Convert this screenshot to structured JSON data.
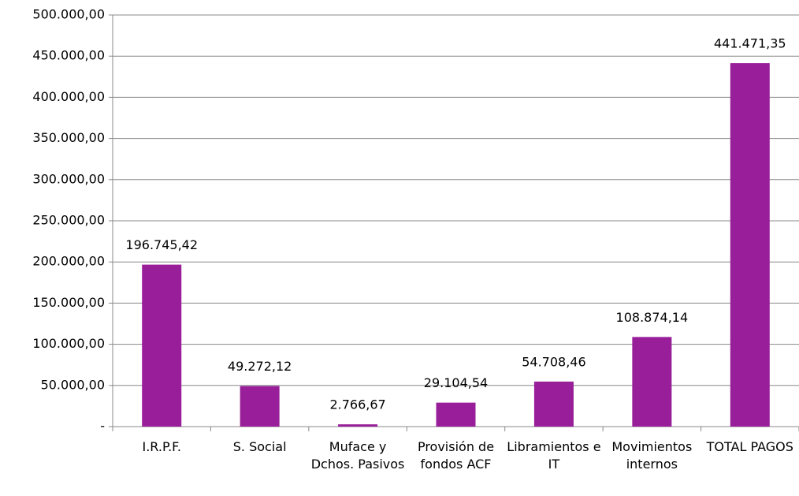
{
  "chart_data": {
    "type": "bar",
    "categories": [
      "I.R.P.F.",
      "S. Social",
      "Muface y Dchos. Pasivos",
      "Provisión de fondos ACF",
      "Libramientos e IT",
      "Movimientos internos",
      "TOTAL PAGOS"
    ],
    "values": [
      196745.42,
      49272.12,
      2766.67,
      29104.54,
      54708.46,
      108874.14,
      441471.35
    ],
    "value_labels": [
      "196.745,42",
      "49.272,12",
      "2.766,67",
      "29.104,54",
      "54.708,46",
      "108.874,14",
      "441.471,35"
    ],
    "color": "#991e99",
    "ylim": [
      0,
      500000
    ],
    "yticks": [
      {
        "value": 0,
        "label": "-"
      },
      {
        "value": 50000,
        "label": "50.000,00"
      },
      {
        "value": 100000,
        "label": "100.000,00"
      },
      {
        "value": 150000,
        "label": "150.000,00"
      },
      {
        "value": 200000,
        "label": "200.000,00"
      },
      {
        "value": 250000,
        "label": "250.000,00"
      },
      {
        "value": 300000,
        "label": "300.000,00"
      },
      {
        "value": 350000,
        "label": "350.000,00"
      },
      {
        "value": 400000,
        "label": "400.000,00"
      },
      {
        "value": 450000,
        "label": "450.000,00"
      },
      {
        "value": 500000,
        "label": "500.000,00"
      }
    ],
    "grid": true
  }
}
